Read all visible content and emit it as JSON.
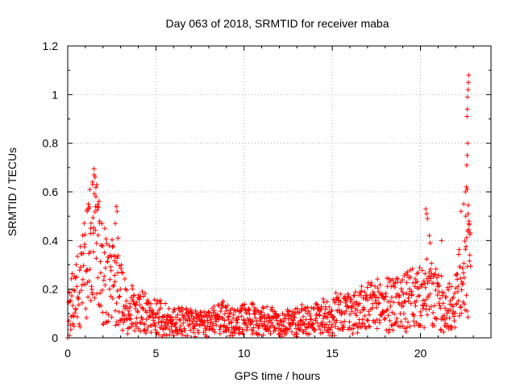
{
  "chart_data": {
    "type": "scatter",
    "title": "Day 063 of 2018, SRMTID for receiver maba",
    "xlabel": "GPS time / hours",
    "ylabel": "SRMTID / TECUs",
    "xlim": [
      0,
      24
    ],
    "ylim": [
      0,
      1.2
    ],
    "x_ticks": [
      0,
      5,
      10,
      15,
      20
    ],
    "x_tick_labels": [
      "0",
      "5",
      "10",
      "15",
      "20"
    ],
    "y_ticks": [
      0,
      0.2,
      0.4,
      0.6,
      0.8,
      1.0,
      1.2
    ],
    "y_tick_labels": [
      "0",
      "0.2",
      "0.4",
      "0.6",
      "0.8",
      "1",
      "1.2"
    ],
    "grid": true,
    "marker": "plus",
    "series": [
      {
        "name": "SRMTID",
        "color": "#ff0000",
        "profile": [
          [
            0.0,
            0.12
          ],
          [
            0.3,
            0.16
          ],
          [
            0.6,
            0.2
          ],
          [
            0.9,
            0.26
          ],
          [
            1.2,
            0.34
          ],
          [
            1.5,
            0.4
          ],
          [
            1.8,
            0.32
          ],
          [
            2.2,
            0.24
          ],
          [
            2.6,
            0.22
          ],
          [
            3.0,
            0.18
          ],
          [
            3.5,
            0.12
          ],
          [
            4.0,
            0.11
          ],
          [
            5.0,
            0.09
          ],
          [
            6.0,
            0.07
          ],
          [
            7.0,
            0.06
          ],
          [
            8.0,
            0.07
          ],
          [
            9.0,
            0.08
          ],
          [
            10.0,
            0.08
          ],
          [
            11.0,
            0.07
          ],
          [
            12.0,
            0.06
          ],
          [
            13.0,
            0.07
          ],
          [
            14.0,
            0.08
          ],
          [
            15.0,
            0.1
          ],
          [
            16.0,
            0.11
          ],
          [
            17.0,
            0.12
          ],
          [
            18.0,
            0.14
          ],
          [
            19.0,
            0.15
          ],
          [
            20.0,
            0.16
          ],
          [
            20.5,
            0.18
          ],
          [
            21.0,
            0.15
          ],
          [
            21.5,
            0.12
          ],
          [
            22.0,
            0.14
          ],
          [
            22.3,
            0.25
          ],
          [
            22.6,
            0.35
          ],
          [
            22.8,
            0.28
          ]
        ],
        "peaks": [
          [
            0.0,
            0.0
          ],
          [
            0.1,
            0.01
          ],
          [
            1.1,
            0.52
          ],
          [
            1.25,
            0.61
          ],
          [
            1.4,
            0.64
          ],
          [
            1.5,
            0.67
          ],
          [
            1.55,
            0.66
          ],
          [
            1.6,
            0.58
          ],
          [
            1.65,
            0.63
          ],
          [
            1.7,
            0.55
          ],
          [
            1.8,
            0.48
          ],
          [
            1.3,
            0.45
          ],
          [
            1.45,
            0.43
          ],
          [
            2.75,
            0.54
          ],
          [
            2.8,
            0.52
          ],
          [
            2.7,
            0.47
          ],
          [
            2.85,
            0.41
          ],
          [
            20.3,
            0.53
          ],
          [
            20.35,
            0.51
          ],
          [
            20.4,
            0.49
          ],
          [
            20.5,
            0.42
          ],
          [
            20.55,
            0.39
          ],
          [
            21.2,
            0.4
          ],
          [
            22.3,
            0.52
          ],
          [
            22.45,
            0.55
          ],
          [
            22.55,
            0.6
          ],
          [
            22.6,
            0.62
          ],
          [
            22.65,
            0.61
          ],
          [
            22.62,
            0.71
          ],
          [
            22.65,
            0.75
          ],
          [
            22.68,
            0.8
          ],
          [
            22.64,
            0.91
          ],
          [
            22.66,
            0.94
          ],
          [
            22.67,
            0.99
          ],
          [
            22.7,
            1.02
          ],
          [
            22.72,
            1.05
          ],
          [
            22.74,
            1.08
          ],
          [
            22.7,
            0.51
          ],
          [
            22.75,
            0.47
          ],
          [
            22.8,
            0.34
          ]
        ]
      }
    ]
  }
}
